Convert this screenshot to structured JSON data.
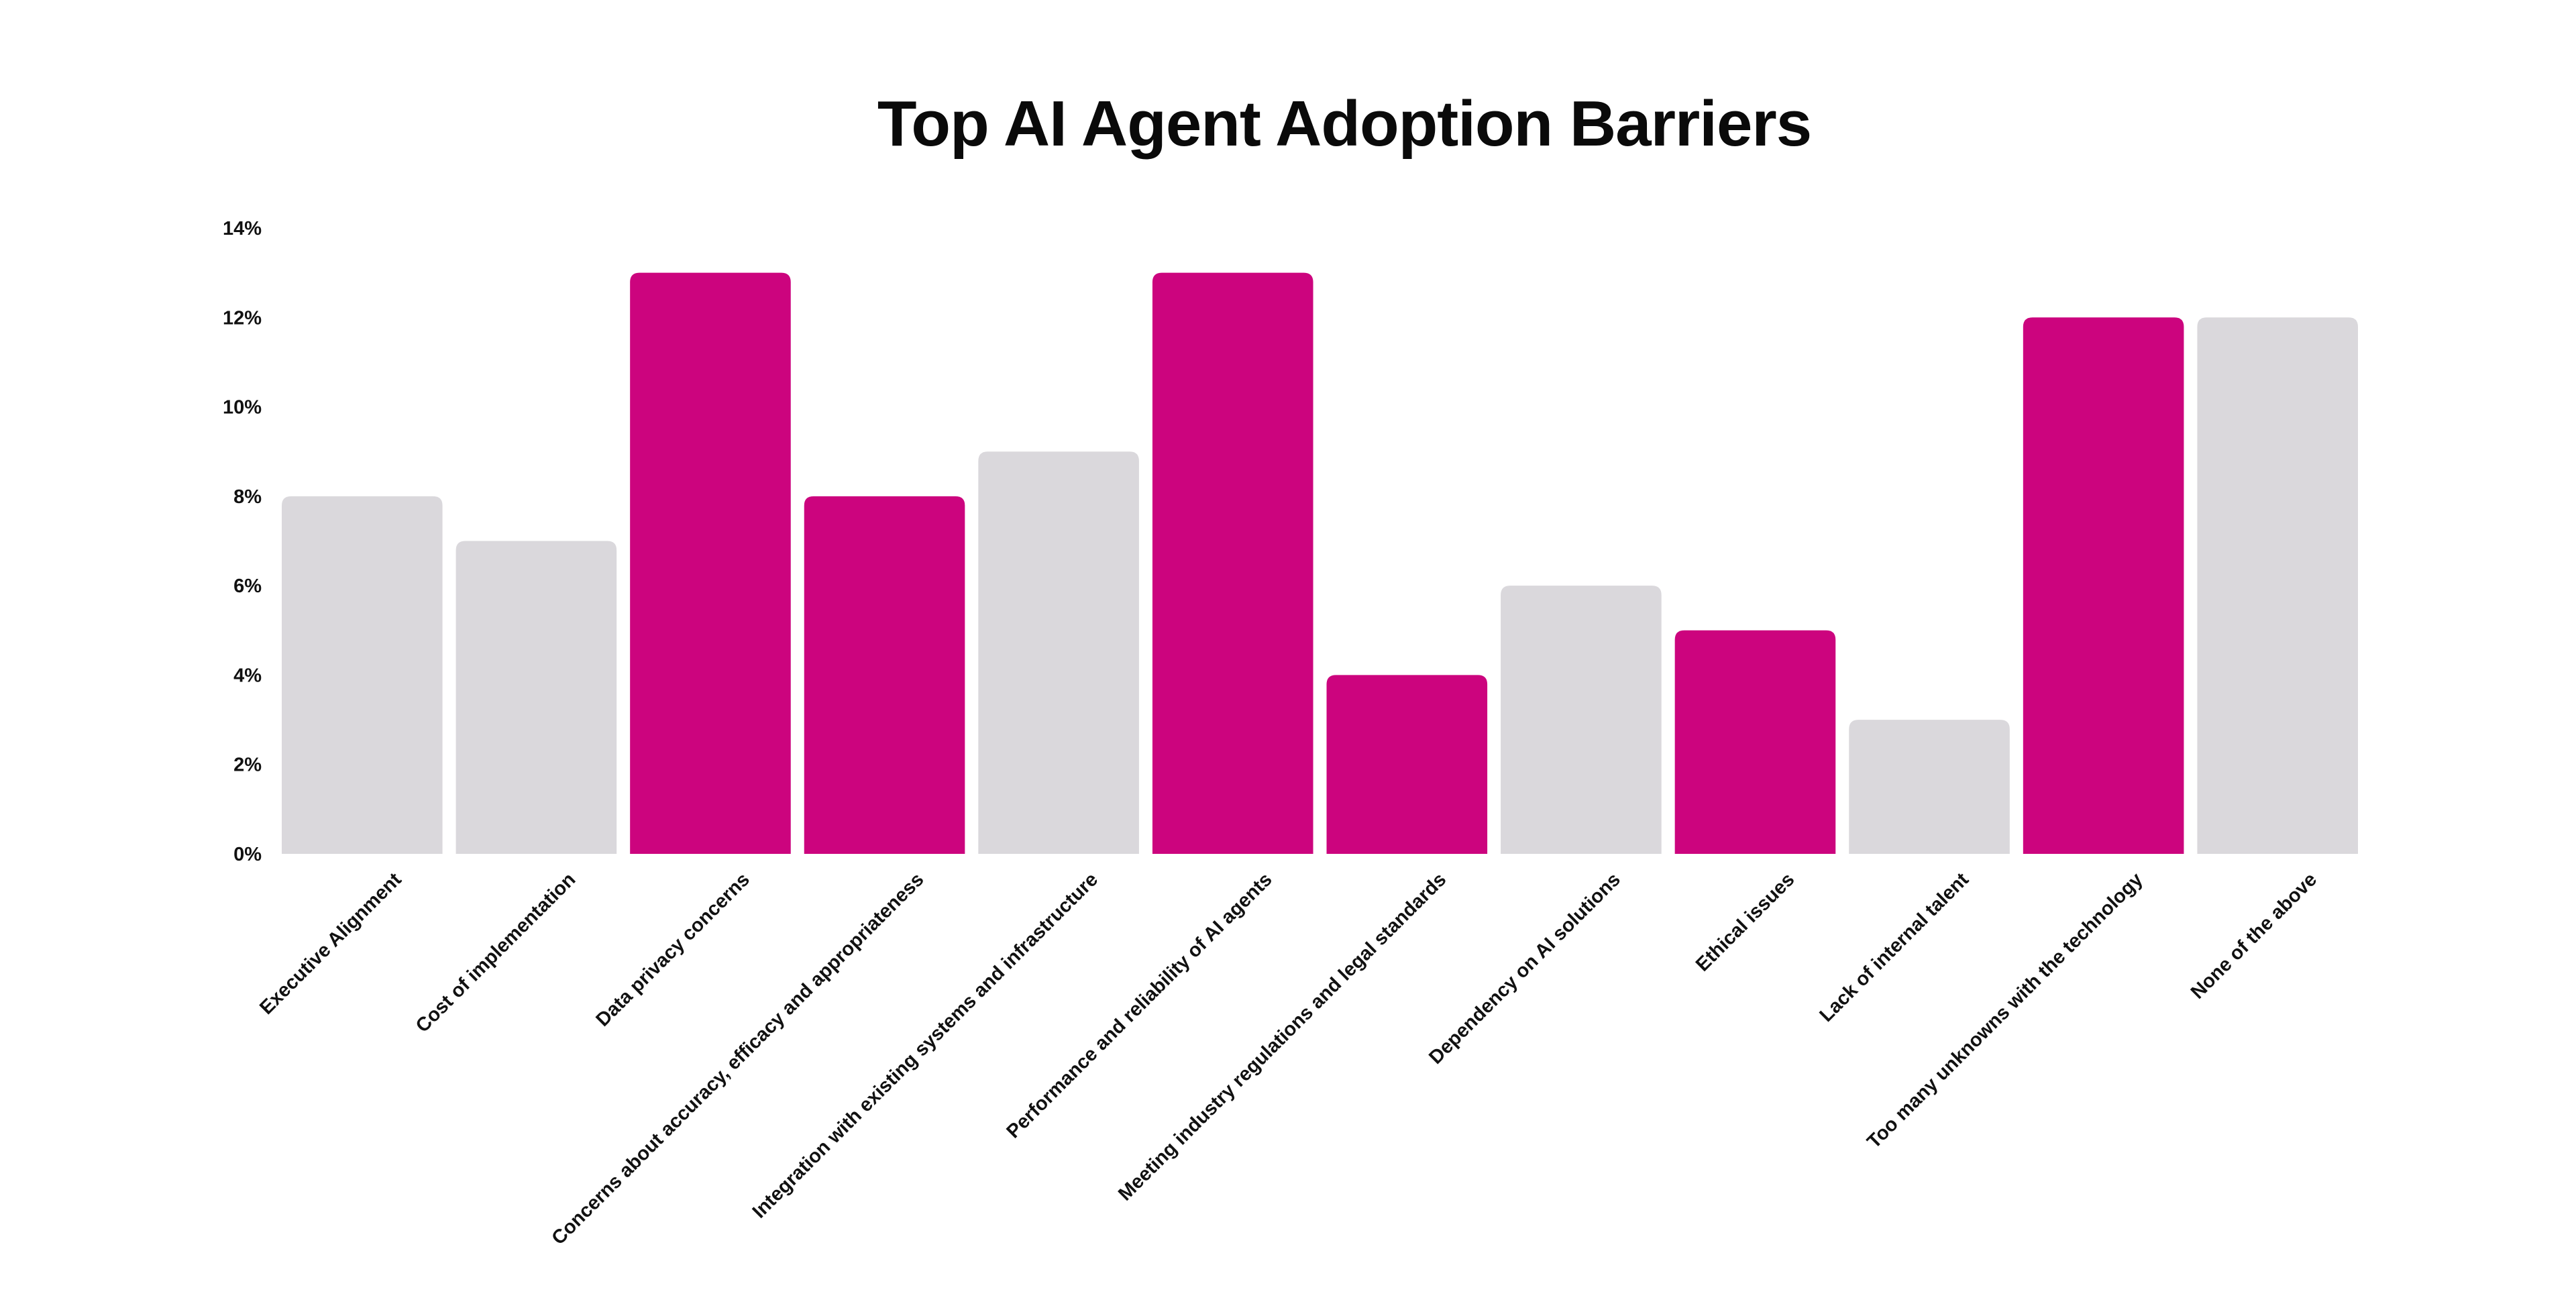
{
  "chart_data": {
    "type": "bar",
    "title": "Top AI Agent Adoption Barriers",
    "xlabel": "",
    "ylabel": "",
    "ylim": [
      0,
      14
    ],
    "y_ticks": [
      "0%",
      "2%",
      "4%",
      "6%",
      "8%",
      "10%",
      "12%",
      "14%"
    ],
    "y_tick_values": [
      0,
      2,
      4,
      6,
      8,
      10,
      12,
      14
    ],
    "grid": false,
    "legend": "none",
    "categories": [
      "Executive Alignment",
      "Cost of implementation",
      "Data privacy concerns",
      "Concerns about accuracy, efficacy and appropriateness",
      "Integration with existing systems and infrastructure",
      "Performance and reliability of AI agents",
      "Meeting industry regulations and legal standards",
      "Dependency on AI solutions",
      "Ethical issues",
      "Lack of internal talent",
      "Too many unknowns with the technology",
      "None of the above"
    ],
    "values": [
      8,
      7,
      13,
      8,
      9,
      13,
      4,
      6,
      5,
      3,
      12,
      12
    ],
    "highlighted": [
      false,
      false,
      true,
      true,
      false,
      true,
      true,
      false,
      true,
      false,
      true,
      false
    ],
    "colors": {
      "highlight": "#cc047e",
      "default": "#dad8dc"
    }
  }
}
